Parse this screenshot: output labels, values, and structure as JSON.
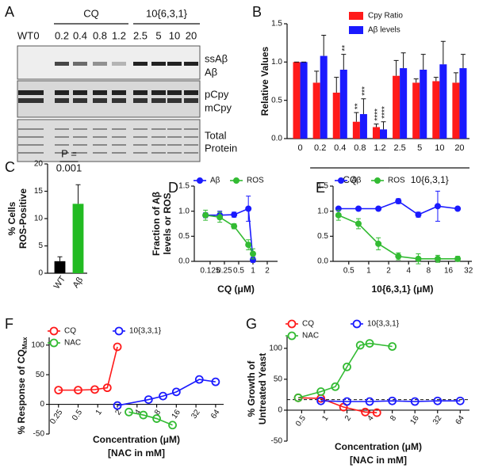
{
  "blot": {
    "panel": "A",
    "lanes": [
      "WT",
      "0",
      "0.2",
      "0.4",
      "0.8",
      "1.2",
      "2.5",
      "5",
      "10",
      "20"
    ],
    "groups": [
      "CQ",
      "10{6,3,1}"
    ],
    "rows": [
      "ssAβ",
      "Aβ",
      "pCpy",
      "mCpy",
      "Total",
      "Protein"
    ]
  },
  "chart_data": [
    {
      "panel": "B",
      "type": "bar",
      "categories": [
        "0",
        "0.2",
        "0.4",
        "0.8",
        "1.2",
        "2.5",
        "5",
        "10",
        "20"
      ],
      "series": [
        {
          "name": "Cpy Ratio",
          "color": "#ff1a1a",
          "values": [
            1,
            0.73,
            0.6,
            0.22,
            0.15,
            0.82,
            0.73,
            0.75,
            0.73
          ],
          "errors": [
            0,
            0.15,
            0.2,
            0.12,
            0.04,
            0.2,
            0.05,
            0.05,
            0.13
          ],
          "significance": [
            null,
            null,
            null,
            "**",
            "****",
            null,
            null,
            null,
            null
          ]
        },
        {
          "name": "Aβ levels",
          "color": "#1a1aff",
          "values": [
            1,
            1.08,
            0.9,
            0.32,
            0.12,
            0.92,
            0.9,
            0.97,
            0.92
          ],
          "errors": [
            0,
            0.27,
            0.2,
            0.2,
            0.1,
            0.2,
            0.2,
            0.3,
            0.18
          ],
          "significance": [
            null,
            null,
            "**",
            "***",
            "****",
            null,
            null,
            null,
            null
          ]
        }
      ],
      "ylabel": [
        "Relative Values"
      ],
      "ylim": [
        0,
        1.5
      ],
      "yticks": [
        {
          "value": 0,
          "label": "0.0"
        },
        {
          "value": 0.5,
          "label": "0.5"
        },
        {
          "value": 1,
          "label": "1.0"
        },
        {
          "value": 1.5,
          "label": "1.5"
        }
      ],
      "groups": [
        "CQ",
        "10{6,3,1}"
      ]
    },
    {
      "panel": "C",
      "type": "bar",
      "categories": [
        "WT",
        "Aβ"
      ],
      "values": [
        2.2,
        12.7
      ],
      "errors": [
        0.8,
        3.5
      ],
      "colors": [
        "#000000",
        "#22bb22"
      ],
      "ylabel": [
        "% Cells",
        "ROS-Positive"
      ],
      "ylim": [
        0,
        20
      ],
      "yticks": [
        0,
        5,
        10,
        15,
        20
      ],
      "annotations": [
        "P =",
        "0.001"
      ]
    },
    {
      "panel": "D",
      "type": "line",
      "xscale": "log",
      "marker": "filled",
      "x": [
        0.1,
        0.2,
        0.4,
        0.8,
        1.0
      ],
      "series": [
        {
          "name": "Aβ",
          "color": "#1a1aff",
          "values": [
            0.92,
            0.92,
            0.93,
            1.05,
            0.03
          ],
          "errors": [
            0.05,
            0.08,
            0.05,
            0.25,
            0.05
          ]
        },
        {
          "name": "ROS",
          "color": "#33bb33",
          "values": [
            0.92,
            0.88,
            0.7,
            0.33,
            0.15
          ],
          "errors": [
            0.1,
            0.1,
            0.05,
            0.1,
            0.1
          ]
        }
      ],
      "xlabel": [
        "CQ (μM)"
      ],
      "ylabel": [
        "Fraction of Aβ",
        "levels or ROS"
      ],
      "xlim": [
        0.058,
        3.3
      ],
      "xticks": [
        0.125,
        0.25,
        0.5,
        1,
        2
      ],
      "ylim": [
        0,
        1.5
      ],
      "yticks": [
        {
          "value": 0,
          "label": "0.0"
        },
        {
          "value": 0.5,
          "label": "0.5"
        },
        {
          "value": 1,
          "label": "1.0"
        },
        {
          "value": 1.5,
          "label": "1.5"
        }
      ]
    },
    {
      "panel": "E",
      "type": "line",
      "xscale": "log",
      "marker": "filled",
      "x": [
        0.35,
        0.7,
        1.4,
        2.8,
        5.6,
        11,
        22
      ],
      "series": [
        {
          "name": "Aβ",
          "color": "#1a1aff",
          "values": [
            1.05,
            1.05,
            1.05,
            1.2,
            0.93,
            1.1,
            1.05
          ],
          "errors": [
            0,
            0,
            0,
            0.05,
            0.05,
            0.3,
            0
          ]
        },
        {
          "name": "ROS",
          "color": "#33bb33",
          "values": [
            0.92,
            0.75,
            0.35,
            0.1,
            0.05,
            0.05,
            0.05
          ],
          "errors": [
            0.1,
            0.1,
            0.12,
            0.07,
            0.1,
            0.07,
            0.05
          ]
        }
      ],
      "xlabel": [
        "10{6,3,1} (μM)"
      ],
      "ylabel": [],
      "xlim": [
        0.29,
        36
      ],
      "xticks": [
        0.5,
        1,
        2,
        4,
        8,
        16,
        32
      ],
      "ylim": [
        0,
        1.5
      ],
      "yticks": [
        {
          "value": 0,
          "label": "0.0"
        },
        {
          "value": 0.5,
          "label": "0.5"
        },
        {
          "value": 1,
          "label": "1.0"
        },
        {
          "value": 1.5,
          "label": "1.5"
        }
      ]
    },
    {
      "panel": "F",
      "type": "line",
      "xscale": "log",
      "marker": "open",
      "series": [
        {
          "name": "CQ",
          "color": "#ff1a1a",
          "x": [
            0.25,
            0.5,
            0.9,
            1.4,
            2.0
          ],
          "values": [
            24,
            24,
            25,
            28,
            97
          ]
        },
        {
          "name": "10{3,3,1}",
          "color": "#1a1aff",
          "x": [
            2,
            6,
            10,
            16,
            36,
            64
          ],
          "values": [
            -2,
            8,
            14,
            21,
            42,
            38
          ]
        },
        {
          "name": "NAC",
          "color": "#33bb33",
          "x": [
            3,
            5,
            8,
            14
          ],
          "values": [
            -13,
            -18,
            -24,
            -35
          ]
        }
      ],
      "xlabel": [
        "Concentration (μM)",
        "[NAC in mM]"
      ],
      "ylabel": [
        "% Response of CQ"
      ],
      "ylabel_sub": "Max",
      "xlim": [
        0.18,
        85
      ],
      "xticks": [
        0.25,
        0.5,
        1,
        2,
        4,
        8,
        16,
        32,
        64
      ],
      "ylim": [
        -50,
        113
      ],
      "yticks": [
        -50,
        0,
        50,
        100
      ]
    },
    {
      "panel": "G",
      "type": "line",
      "xscale": "log",
      "marker": "open",
      "series": [
        {
          "name": "CQ",
          "color": "#ff1a1a",
          "x": [
            0.45,
            0.9,
            1.8,
            3.5,
            5
          ],
          "values": [
            20,
            19,
            5,
            -3,
            -4
          ]
        },
        {
          "name": "10{3,3,1}",
          "color": "#1a1aff",
          "x": [
            0.9,
            2,
            4,
            8,
            16,
            32,
            64
          ],
          "values": [
            15,
            14,
            14,
            15,
            14,
            15,
            15
          ]
        },
        {
          "name": "NAC",
          "color": "#33bb33",
          "x": [
            0.45,
            0.9,
            1.4,
            2,
            3,
            4,
            8
          ],
          "values": [
            20,
            30,
            38,
            70,
            105,
            108,
            103
          ]
        }
      ],
      "hline": 17,
      "xlabel": [
        "Concentration (μM)",
        "[NAC in mM]"
      ],
      "ylabel": [
        "% Growth of",
        "Untreated Yeast"
      ],
      "xlim": [
        0.32,
        85
      ],
      "xticks": [
        0.5,
        1,
        2,
        4,
        8,
        16,
        32,
        64
      ],
      "ylim": [
        -50,
        119
      ],
      "yticks": [
        -50,
        0,
        50,
        100
      ]
    }
  ]
}
